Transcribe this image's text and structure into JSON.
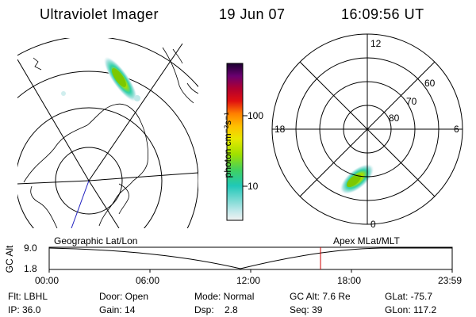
{
  "header": {
    "instrument": "Ultraviolet Imager",
    "date": "19 Jun 07",
    "time": "16:09:56 UT"
  },
  "colorbar": {
    "unit_label": "photon cm⁻²s⁻¹",
    "ticks": [
      "100",
      "10"
    ]
  },
  "right_panel": {
    "mlt_labels": {
      "top": "12",
      "left": "18",
      "right": "6",
      "bottom": "0"
    },
    "lat_labels": [
      "60",
      "70",
      "80"
    ]
  },
  "timeline": {
    "ylabel": "GC Alt",
    "yticks": [
      "9.0",
      "1.8"
    ],
    "left_caption": "Geographic Lat/Lon",
    "right_caption": "Apex MLat/MLT",
    "xticks": [
      "00:00",
      "06:00",
      "12:00",
      "18:00",
      "23:59"
    ],
    "current_time_marker": "16:09:56"
  },
  "info": {
    "filter": "Flt: LBHL",
    "door": "Door: Open",
    "mode": "Mode: Normal",
    "gc_alt": "GC Alt: 7.6 Re",
    "glat": "GLat: -75.7",
    "ip": "IP: 36.0",
    "gain": "Gain: 14",
    "dsp": "Dsp:    2.8",
    "seq": "Seq: 39",
    "glon": "GLon: 117.2"
  },
  "colors": {
    "aurora_core": "#8cd400",
    "aurora_mid": "#20d0b0",
    "aurora_faint": "#bfe8e8",
    "marker": "#d00000",
    "nadir_line": "#2020c0"
  }
}
